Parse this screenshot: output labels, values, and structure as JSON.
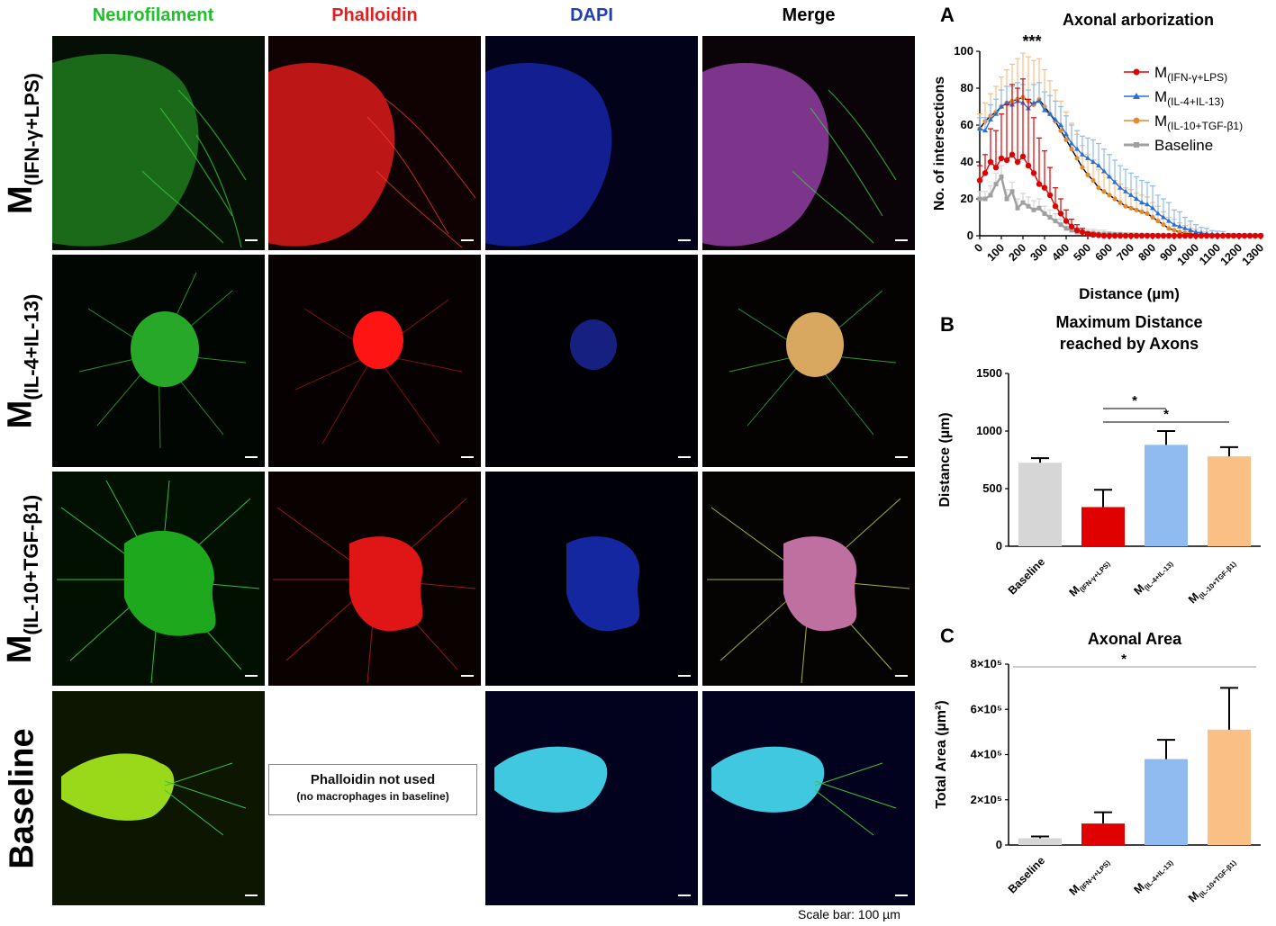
{
  "columns": [
    {
      "label": "Neurofilament",
      "color": "#22c02a"
    },
    {
      "label": "Phalloidin",
      "color": "#e02020"
    },
    {
      "label": "DAPI",
      "color": "#2040b0"
    },
    {
      "label": "Merge",
      "color": "#000000"
    }
  ],
  "rows": [
    {
      "label_main": "M",
      "label_sub": "(IFN-γ+LPS)"
    },
    {
      "label_main": "M",
      "label_sub": "(IL-4+IL-13)"
    },
    {
      "label_main": "M",
      "label_sub": "(IL-10+TGF-β1)"
    },
    {
      "label_main": "Baseline",
      "label_sub": ""
    }
  ],
  "note": {
    "line1": "Phalloidin not used",
    "line2": "(no macrophages in baseline)"
  },
  "scale_caption": "Scale bar: 100 µm",
  "panel_letters": [
    "A",
    "B",
    "C"
  ],
  "colors": {
    "m1": "#e00000",
    "m2": "#8fbbf0",
    "m2_line": "#2a6fd6",
    "m3": "#f9bf84",
    "m3_line": "#e58a2c",
    "baseline": "#d6d6d6",
    "baseline_line": "#a0a0a0"
  },
  "chart_data": [
    {
      "type": "line",
      "title": "Axonal arborization",
      "xlabel": "Distance (µm)",
      "ylabel": "No. of intersections",
      "annotation": "***",
      "x_ticks": [
        "0",
        "100",
        "200",
        "300",
        "400",
        "500",
        "600",
        "700",
        "800",
        "900",
        "1000",
        "1100",
        "1200",
        "1300"
      ],
      "y_ticks": [
        "0",
        "20",
        "40",
        "60",
        "80",
        "100"
      ],
      "xlim": [
        0,
        1300
      ],
      "ylim": [
        0,
        100
      ],
      "x": [
        0,
        25,
        50,
        75,
        100,
        125,
        150,
        175,
        200,
        225,
        250,
        275,
        300,
        325,
        350,
        375,
        400,
        425,
        450,
        475,
        500,
        525,
        550,
        575,
        600,
        625,
        650,
        675,
        700,
        725,
        750,
        775,
        800,
        825,
        850,
        875,
        900,
        925,
        950,
        975,
        1000,
        1025,
        1050,
        1075,
        1100,
        1125,
        1150,
        1175,
        1200,
        1225,
        1250,
        1275,
        1300
      ],
      "series": [
        {
          "name": "M(IFN-γ+LPS)",
          "label_main": "M",
          "label_sub": "(IFN-γ+LPS)",
          "values": [
            30,
            34,
            40,
            37,
            42,
            41,
            44,
            40,
            43,
            38,
            34,
            28,
            26,
            22,
            16,
            12,
            8,
            5,
            3,
            2,
            1,
            0.5,
            0.3,
            0,
            0,
            0,
            0,
            0,
            0,
            0,
            0,
            0,
            0,
            0,
            0,
            0,
            0,
            0,
            0,
            0,
            0,
            0,
            0,
            0,
            0,
            0,
            0,
            0,
            0,
            0,
            0,
            0,
            0
          ],
          "errors": [
            8,
            10,
            18,
            20,
            24,
            30,
            38,
            40,
            42,
            36,
            30,
            25,
            20,
            15,
            10,
            8,
            6,
            4,
            3,
            2,
            1,
            1,
            0,
            0,
            0,
            0,
            0,
            0,
            0,
            0,
            0,
            0,
            0,
            0,
            0,
            0,
            0,
            0,
            0,
            0,
            0,
            0,
            0,
            0,
            0,
            0,
            0,
            0,
            0,
            0,
            0,
            0,
            0
          ]
        },
        {
          "name": "M(IL-4+IL-13)",
          "label_main": "M",
          "label_sub": "(IL-4+IL-13)",
          "values": [
            58,
            57,
            63,
            66,
            70,
            72,
            71,
            73,
            72,
            69,
            72,
            73,
            68,
            66,
            63,
            60,
            55,
            50,
            47,
            44,
            42,
            40,
            38,
            35,
            32,
            29,
            26,
            24,
            22,
            20,
            18,
            17,
            15,
            12,
            10,
            8,
            6,
            5,
            4,
            3,
            2,
            1.5,
            1,
            0.8,
            0.5,
            0.3,
            0.2,
            0.1,
            0,
            0,
            0,
            0,
            0
          ],
          "errors": [
            6,
            7,
            8,
            8,
            9,
            9,
            10,
            10,
            10,
            10,
            10,
            10,
            10,
            10,
            10,
            10,
            10,
            10,
            10,
            10,
            11,
            12,
            12,
            12,
            12,
            12,
            12,
            12,
            12,
            12,
            12,
            12,
            12,
            10,
            10,
            10,
            8,
            8,
            6,
            5,
            4,
            3,
            3,
            2,
            2,
            2,
            1,
            1,
            1,
            1,
            1,
            1,
            1
          ]
        },
        {
          "name": "M(IL-10+TGF-β1)",
          "label_main": "M",
          "label_sub": "(IL-10+TGF-β1)",
          "values": [
            58,
            62,
            65,
            67,
            70,
            72,
            73,
            74,
            75,
            73,
            71,
            74,
            70,
            66,
            62,
            57,
            52,
            47,
            42,
            37,
            33,
            30,
            26,
            24,
            22,
            20,
            18,
            16,
            15,
            14,
            13,
            12,
            10,
            8,
            6,
            4,
            3,
            2,
            1.5,
            1,
            0.5,
            0.3,
            0,
            0,
            0,
            0,
            0,
            0,
            0,
            0,
            0,
            0,
            0
          ],
          "errors": [
            8,
            10,
            12,
            14,
            16,
            18,
            20,
            22,
            24,
            24,
            24,
            22,
            20,
            18,
            17,
            16,
            15,
            14,
            13,
            12,
            11,
            11,
            10,
            10,
            10,
            10,
            10,
            10,
            10,
            9,
            9,
            9,
            8,
            8,
            7,
            6,
            6,
            5,
            4,
            3,
            3,
            2,
            2,
            1,
            1,
            1,
            1,
            1,
            1,
            1,
            1,
            1,
            1
          ]
        },
        {
          "name": "Baseline",
          "label_main": "Baseline",
          "label_sub": "",
          "values": [
            20,
            20,
            22,
            28,
            32,
            20,
            24,
            15,
            18,
            16,
            14,
            15,
            12,
            10,
            8,
            6,
            4,
            3,
            2,
            2,
            1.5,
            1.5,
            1,
            1,
            1,
            0.8,
            0.8,
            0.5,
            0.5,
            0.4,
            0.3,
            0.3,
            0.2,
            0.2,
            0.1,
            0.1,
            0,
            0,
            0,
            0,
            0,
            0,
            0,
            0,
            0,
            0,
            0,
            0,
            0,
            0,
            0,
            0,
            0
          ],
          "errors": [
            4,
            4,
            5,
            6,
            6,
            5,
            5,
            5,
            5,
            5,
            5,
            5,
            4,
            4,
            4,
            3,
            3,
            3,
            2,
            2,
            2,
            2,
            2,
            2,
            1,
            1,
            1,
            1,
            1,
            1,
            1,
            1,
            1,
            1,
            1,
            1,
            1,
            1,
            1,
            1,
            1,
            1,
            1,
            1,
            1,
            1,
            1,
            1,
            1,
            1,
            1,
            1,
            1
          ]
        }
      ]
    },
    {
      "type": "bar",
      "title": "Maximum Distance reached by Axons",
      "title_line1": "Maximum Distance",
      "title_line2": "reached by Axons",
      "ylabel": "Distance (µm)",
      "y_ticks": [
        "0",
        "500",
        "1000",
        "1500"
      ],
      "ylim": [
        0,
        1500
      ],
      "categories": [
        {
          "main": "Baseline",
          "sub": ""
        },
        {
          "main": "M",
          "sub": "(IFN-γ+LPS)"
        },
        {
          "main": "M",
          "sub": "(IL-4+IL-13)"
        },
        {
          "main": "M",
          "sub": "(IL-10+TGF-β1)"
        }
      ],
      "values": [
        725,
        340,
        880,
        780
      ],
      "errors": [
        40,
        150,
        120,
        80
      ],
      "significance": [
        {
          "from": 1,
          "to": 2,
          "label": "*"
        },
        {
          "from": 1,
          "to": 3,
          "label": "*"
        }
      ]
    },
    {
      "type": "bar",
      "title": "Axonal Area",
      "ylabel": "Total Area (µm²)",
      "y_ticks": [
        "0",
        "2×10⁵",
        "4×10⁵",
        "6×10⁵",
        "8×10⁵"
      ],
      "ylim": [
        0,
        800000
      ],
      "categories": [
        {
          "main": "Baseline",
          "sub": ""
        },
        {
          "main": "M",
          "sub": "(IFN-γ+LPS)"
        },
        {
          "main": "M",
          "sub": "(IL-4+IL-13)"
        },
        {
          "main": "M",
          "sub": "(IL-10+TGF-β1)"
        }
      ],
      "values": [
        30000,
        95000,
        380000,
        510000
      ],
      "errors": [
        8000,
        50000,
        85000,
        185000
      ],
      "significance": [
        {
          "from": 0,
          "to": 3,
          "label": "*"
        }
      ]
    }
  ]
}
